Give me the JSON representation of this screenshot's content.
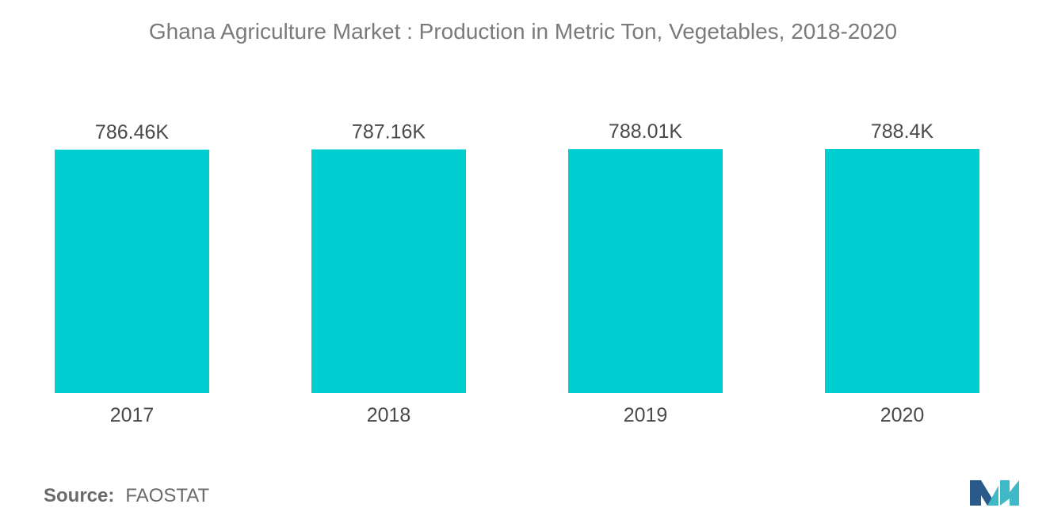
{
  "chart_data": {
    "type": "bar",
    "title": "Ghana Agriculture Market : Production in Metric Ton, Vegetables, 2018-2020",
    "categories": [
      "2017",
      "2018",
      "2019",
      "2020"
    ],
    "values": [
      786.46,
      787.16,
      788.01,
      788.4
    ],
    "value_labels": [
      "786.46K",
      "787.16K",
      "788.01K",
      "788.4K"
    ],
    "unit": "K",
    "xlabel": "",
    "ylabel": "",
    "grid": false,
    "legend": "none",
    "bar_color": "#00ced1"
  },
  "source": {
    "label": "Source:",
    "value": "FAOSTAT"
  },
  "logo": {
    "icon": "mordor-intelligence-logo",
    "colors": [
      "#2a5a8a",
      "#3fb8c8"
    ]
  }
}
